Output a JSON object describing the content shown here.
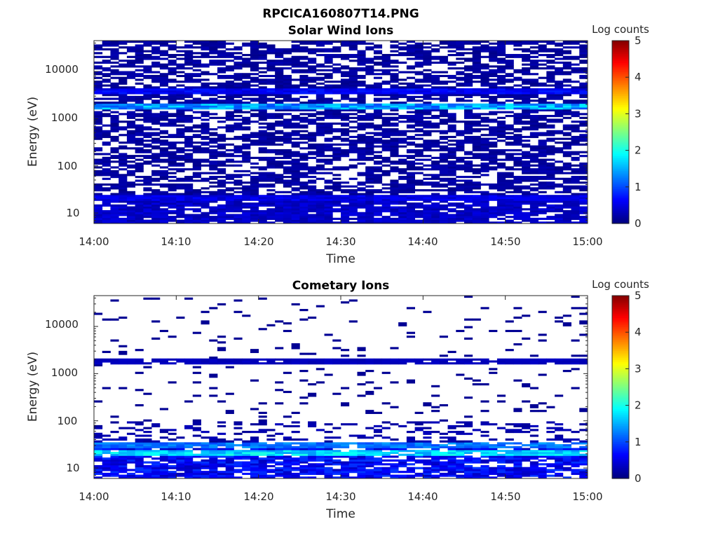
{
  "figure": {
    "title": "RPCICA160807T14.PNG"
  },
  "chart_data": [
    {
      "type": "heatmap",
      "title": "Solar Wind Ions",
      "xlabel": "Time",
      "ylabel": "Energy (eV)",
      "y_scale": "log",
      "ylim": [
        6,
        45000
      ],
      "x_ticks": [
        "14:00",
        "14:10",
        "14:20",
        "14:30",
        "14:40",
        "14:50",
        "15:00"
      ],
      "y_ticks": [
        "10",
        "100",
        "1000",
        "10000"
      ],
      "colorbar": {
        "label": "Log counts",
        "range": [
          0,
          5
        ],
        "ticks": [
          "0",
          "1",
          "2",
          "3",
          "4",
          "5"
        ],
        "colormap": "jet"
      },
      "features": [
        {
          "energy_eV": 1800,
          "typical_log_counts": 1.4
        },
        {
          "energy_eV": 3500,
          "typical_log_counts": 0.6
        },
        {
          "energy_eV": 20,
          "typical_log_counts": 0.5
        }
      ]
    },
    {
      "type": "heatmap",
      "title": "Cometary Ions",
      "xlabel": "Time",
      "ylabel": "Energy (eV)",
      "y_scale": "log",
      "ylim": [
        6,
        45000
      ],
      "x_ticks": [
        "14:00",
        "14:10",
        "14:20",
        "14:30",
        "14:40",
        "14:50",
        "15:00"
      ],
      "y_ticks": [
        "10",
        "100",
        "1000",
        "10000"
      ],
      "colorbar": {
        "label": "Log counts",
        "range": [
          0,
          5
        ],
        "ticks": [
          "0",
          "1",
          "2",
          "3",
          "4",
          "5"
        ],
        "colormap": "jet"
      },
      "features": [
        {
          "energy_eV": 20,
          "typical_log_counts": 1.7
        },
        {
          "energy_eV": 30,
          "typical_log_counts": 1.2
        },
        {
          "energy_eV": 1800,
          "typical_log_counts": 0.3
        }
      ]
    }
  ]
}
